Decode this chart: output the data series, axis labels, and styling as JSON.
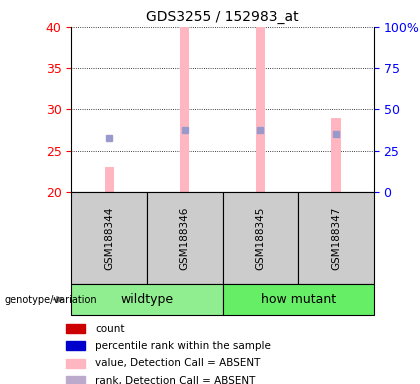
{
  "title": "GDS3255 / 152983_at",
  "samples": [
    "GSM188344",
    "GSM188346",
    "GSM188345",
    "GSM188347"
  ],
  "ylim": [
    20,
    40
  ],
  "yticks": [
    20,
    25,
    30,
    35,
    40
  ],
  "y2labels": [
    "0",
    "25",
    "50",
    "75",
    "100%"
  ],
  "bar_color": "#FFB6C1",
  "dot_color": "#9999CC",
  "bar_values": [
    23.0,
    40.0,
    40.0,
    29.0
  ],
  "dot_values": [
    26.5,
    27.5,
    27.5,
    27.0
  ],
  "bar_bottom": 20,
  "bar_width": 0.12,
  "sample_bg": "#CCCCCC",
  "group_spans": [
    {
      "label": "wildtype",
      "start": 0,
      "end": 2,
      "color": "#90EE90"
    },
    {
      "label": "how mutant",
      "start": 2,
      "end": 4,
      "color": "#66EE66"
    }
  ],
  "genotype_label": "genotype/variation",
  "legend_items": [
    {
      "color": "#CC0000",
      "label": "count"
    },
    {
      "color": "#0000CC",
      "label": "percentile rank within the sample"
    },
    {
      "color": "#FFB6C1",
      "label": "value, Detection Call = ABSENT"
    },
    {
      "color": "#BBAACC",
      "label": "rank, Detection Call = ABSENT"
    }
  ]
}
